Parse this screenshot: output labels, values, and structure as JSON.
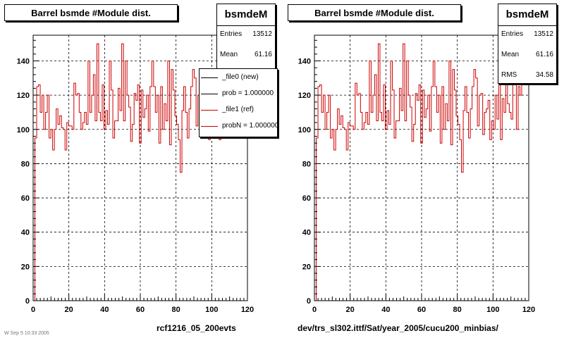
{
  "footer_tiny_text": "W Sep 5 10:33 2005",
  "panels": [
    {
      "title": "Barrel bsmde #Module dist.",
      "caption": "rcf1216_05_200evts",
      "stats": {
        "name": "bsmdeM",
        "rows": [
          {
            "label": "Entries",
            "value": "13512"
          },
          {
            "label": "Mean",
            "value": "61.16"
          }
        ]
      },
      "legend": [
        {
          "label": "_file0 (new)",
          "color": "#000000"
        },
        {
          "label": "prob = 1.000000",
          "color": "#000000"
        },
        {
          "label": "_file1 (ref)",
          "color": "#cc0000"
        },
        {
          "label": "probN = 1.000000",
          "color": "#cc0000"
        }
      ]
    },
    {
      "title": "Barrel bsmde #Module dist.",
      "caption": "dev/trs_sl302.ittf/Sat/year_2005/cucu200_minbias/",
      "stats": {
        "name": "bsmdeM",
        "rows": [
          {
            "label": "Entries",
            "value": "13512"
          },
          {
            "label": "Mean",
            "value": "61.16"
          },
          {
            "label": "RMS",
            "value": "34.58"
          }
        ]
      },
      "legend": []
    }
  ],
  "chart_data": {
    "type": "bar",
    "histogram": "step",
    "xlim": [
      0,
      120
    ],
    "ylim": [
      0,
      155
    ],
    "xticks": [
      0,
      20,
      40,
      60,
      80,
      100,
      120
    ],
    "yticks": [
      0,
      20,
      40,
      60,
      80,
      100,
      120,
      140
    ],
    "grid": true,
    "line_color": "#cc0000",
    "series": [
      {
        "name": "_file1 (ref)",
        "values": [
          0,
          95,
          125,
          126,
          110,
          120,
          100,
          110,
          120,
          95,
          100,
          88,
          100,
          112,
          103,
          108,
          101,
          100,
          88,
          104,
          102,
          102,
          100,
          127,
          120,
          121,
          110,
          100,
          104,
          110,
          103,
          140,
          110,
          120,
          132,
          105,
          150,
          110,
          105,
          126,
          100,
          111,
          103,
          140,
          123,
          95,
          105,
          105,
          124,
          111,
          150,
          105,
          140,
          120,
          113,
          93,
          103,
          121,
          117,
          126,
          92,
          123,
          107,
          112,
          120,
          99,
          125,
          140,
          125,
          110,
          120,
          92,
          125,
          100,
          115,
          105,
          140,
          91,
          135,
          123,
          108,
          103,
          94,
          75,
          111,
          125,
          110,
          95,
          112,
          125,
          135,
          130,
          102,
          120,
          121,
          97,
          110,
          112,
          117,
          94,
          105,
          100,
          120,
          106,
          135,
          94,
          118,
          110,
          130,
          115,
          110,
          106,
          127,
          130,
          100,
          125,
          120,
          140,
          140,
          130,
          143
        ]
      }
    ]
  }
}
